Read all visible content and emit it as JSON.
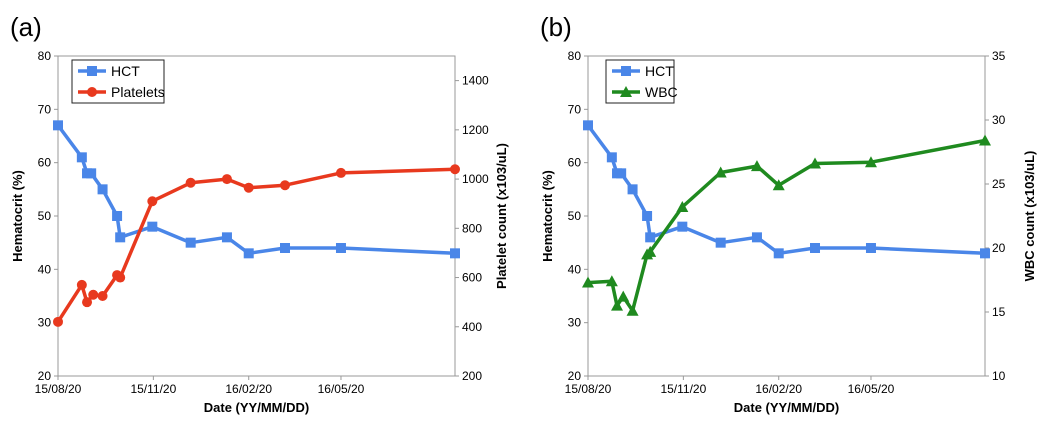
{
  "chart_data": [
    {
      "panel_label": "(a)",
      "type": "line",
      "xlabel": "Date (YY/MM/DD)",
      "x_ticks": [
        "15/08/20",
        "15/11/20",
        "16/02/20",
        "16/05/20"
      ],
      "x_tick_days": [
        0,
        92,
        184,
        273
      ],
      "x_range_days": [
        0,
        383
      ],
      "ylabel": "Hematocrit (%)",
      "ylim": [
        20,
        80
      ],
      "yticks": [
        20,
        30,
        40,
        50,
        60,
        70,
        80
      ],
      "y2label": "Platelet count (x103/uL)",
      "y2lim": [
        200,
        1500
      ],
      "y2ticks": [
        200,
        400,
        600,
        800,
        1000,
        1200,
        1400
      ],
      "legend": "top-left",
      "series": [
        {
          "name": "HCT",
          "axis": "left",
          "color": "#4a86e8",
          "marker": "square",
          "x_days": [
            0,
            23,
            28,
            32,
            43,
            57,
            60,
            91,
            128,
            163,
            184,
            219,
            273,
            383
          ],
          "values": [
            67,
            61,
            58,
            58,
            55,
            50,
            46,
            48,
            45,
            46,
            43,
            44,
            44,
            43
          ]
        },
        {
          "name": "Platelets",
          "axis": "right",
          "color": "#e8391e",
          "marker": "circle",
          "x_days": [
            0,
            23,
            28,
            34,
            43,
            57,
            60,
            91,
            128,
            163,
            184,
            219,
            273,
            383
          ],
          "values": [
            420,
            570,
            500,
            530,
            525,
            610,
            600,
            910,
            985,
            1000,
            965,
            975,
            1025,
            1040
          ]
        }
      ]
    },
    {
      "panel_label": "(b)",
      "type": "line",
      "xlabel": "Date (YY/MM/DD)",
      "x_ticks": [
        "15/08/20",
        "15/11/20",
        "16/02/20",
        "16/05/20"
      ],
      "x_tick_days": [
        0,
        92,
        184,
        273
      ],
      "x_range_days": [
        0,
        383
      ],
      "ylabel": "Hematocrit (%)",
      "ylim": [
        20,
        80
      ],
      "yticks": [
        20,
        30,
        40,
        50,
        60,
        70,
        80
      ],
      "y2label": "WBC count (x103/uL)",
      "y2lim": [
        10,
        35
      ],
      "y2ticks": [
        10,
        15,
        20,
        25,
        30,
        35
      ],
      "legend": "top-left",
      "series": [
        {
          "name": "HCT",
          "axis": "left",
          "color": "#4a86e8",
          "marker": "square",
          "x_days": [
            0,
            23,
            28,
            32,
            43,
            57,
            60,
            91,
            128,
            163,
            184,
            219,
            273,
            383
          ],
          "values": [
            67,
            61,
            58,
            58,
            55,
            50,
            46,
            48,
            45,
            46,
            43,
            44,
            44,
            43
          ]
        },
        {
          "name": "WBC",
          "axis": "right",
          "color": "#1f8a1f",
          "marker": "triangle",
          "x_days": [
            0,
            23,
            28,
            34,
            43,
            57,
            60,
            91,
            128,
            163,
            184,
            219,
            273,
            383
          ],
          "values": [
            17.3,
            17.4,
            15.5,
            16.2,
            15.1,
            19.5,
            19.7,
            23.2,
            25.9,
            26.4,
            24.9,
            26.6,
            26.7,
            28.4
          ]
        }
      ]
    }
  ]
}
